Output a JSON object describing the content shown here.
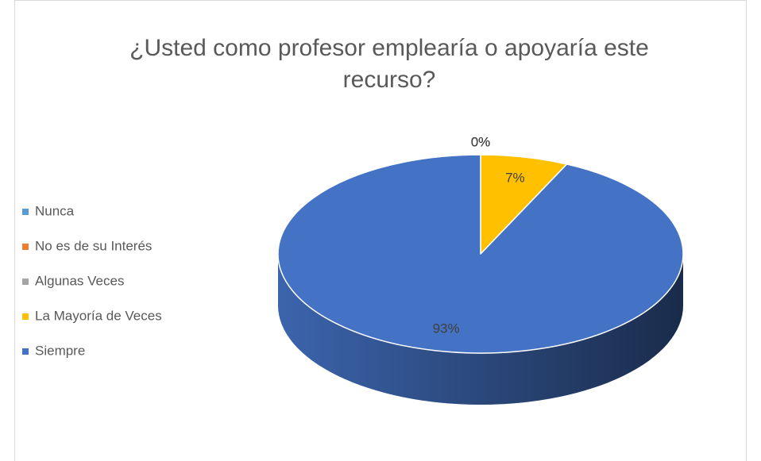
{
  "chart_data": {
    "type": "pie",
    "title": [
      "¿Usted como profesor emplearía o apoyaría este",
      "recurso?"
    ],
    "categories": [
      "Nunca",
      "No es de su Interés",
      "Algunas Veces",
      "La Mayoría de Veces",
      "Siempre"
    ],
    "values": [
      0,
      0,
      0,
      7,
      93
    ],
    "value_labels": [
      "0%",
      "0%",
      "0%",
      "7%",
      "93%"
    ],
    "colors": [
      "#5b9bd5",
      "#ed7d31",
      "#a5a5a5",
      "#ffc000",
      "#4472c4"
    ],
    "legend": "left"
  }
}
